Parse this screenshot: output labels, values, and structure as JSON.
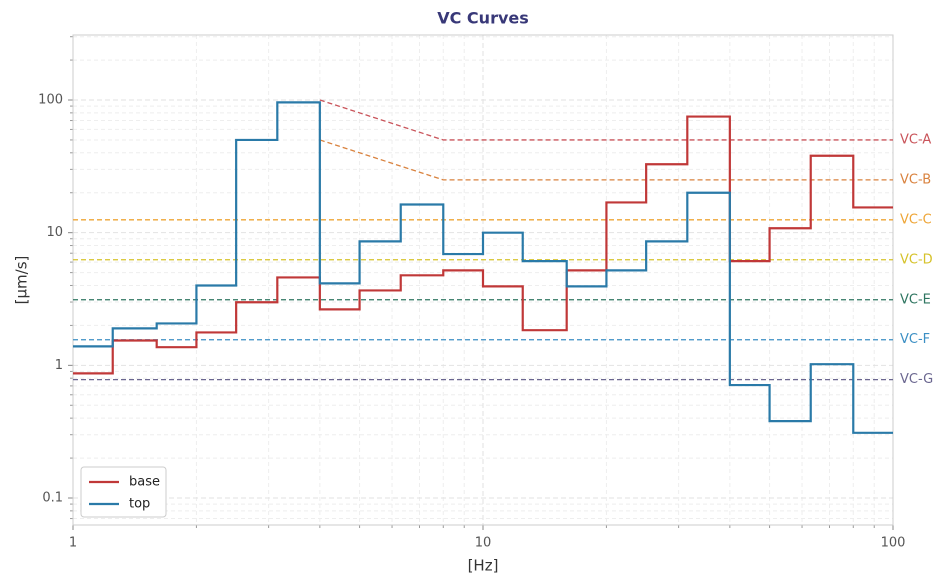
{
  "chart_data": {
    "type": "step",
    "title": "VC Curves",
    "x_label": "[Hz]",
    "y_label": "[µm/s]",
    "xscale": "log",
    "yscale": "log",
    "xlim": [
      1,
      100
    ],
    "ylim": [
      0.0626,
      309
    ],
    "xticks": [
      1,
      10,
      100
    ],
    "yticks": [
      0.1,
      1,
      10,
      100
    ],
    "grid": true,
    "minor_grid": true,
    "legend": "lower left",
    "x": [
      1,
      1.25,
      1.6,
      2,
      2.5,
      3.15,
      4,
      5,
      6.3,
      8,
      10,
      12.5,
      16,
      20,
      25,
      31.5,
      40,
      50,
      63,
      80
    ],
    "series": [
      {
        "name": "base",
        "color": "#c03838",
        "values": [
          0.87,
          1.54,
          1.37,
          1.77,
          2.99,
          4.6,
          2.64,
          3.67,
          4.77,
          5.2,
          3.94,
          1.84,
          5.2,
          16.9,
          32.8,
          75,
          6.1,
          10.8,
          38,
          15.5
        ]
      },
      {
        "name": "top",
        "color": "#2a7aa8",
        "values": [
          1.39,
          1.9,
          2.07,
          4.0,
          50,
          96,
          4.15,
          8.6,
          16.3,
          6.9,
          10,
          6.1,
          3.94,
          5.2,
          8.6,
          20,
          0.71,
          0.38,
          1.02,
          0.31
        ]
      }
    ],
    "criteria": [
      {
        "name": "VC-A",
        "color": "#c9545a",
        "x": [
          4,
          8,
          100
        ],
        "values": [
          100,
          50,
          50
        ]
      },
      {
        "name": "VC-B",
        "color": "#d9823e",
        "x": [
          4,
          8,
          100
        ],
        "values": [
          50,
          25,
          25
        ]
      },
      {
        "name": "VC-C",
        "color": "#eea536",
        "x": [
          1,
          100
        ],
        "values": [
          12.5,
          12.5
        ]
      },
      {
        "name": "VC-D",
        "color": "#d6c22a",
        "x": [
          1,
          100
        ],
        "values": [
          6.25,
          6.25
        ]
      },
      {
        "name": "VC-E",
        "color": "#2e7560",
        "x": [
          1,
          100
        ],
        "values": [
          3.12,
          3.12
        ]
      },
      {
        "name": "VC-F",
        "color": "#3b8fc4",
        "x": [
          1,
          100
        ],
        "values": [
          1.56,
          1.56
        ]
      },
      {
        "name": "VC-G",
        "color": "#6b6790",
        "x": [
          1,
          100
        ],
        "values": [
          0.78,
          0.78
        ]
      }
    ]
  }
}
